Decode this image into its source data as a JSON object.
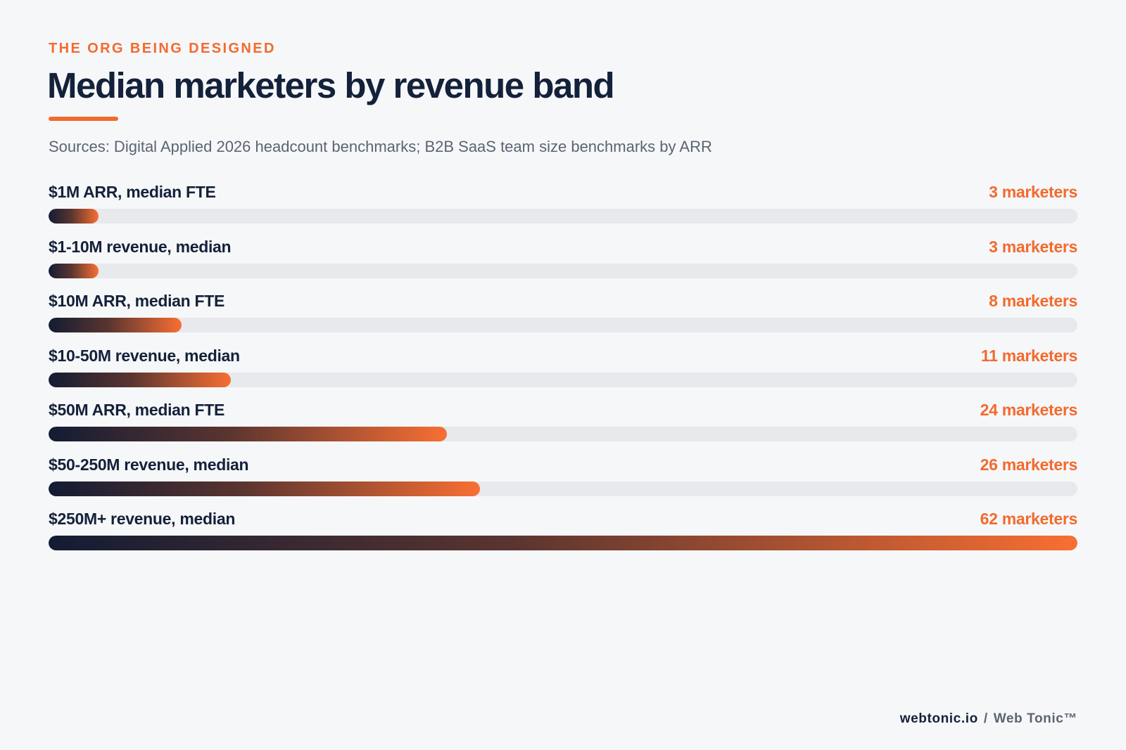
{
  "header": {
    "eyebrow": "THE ORG BEING DESIGNED",
    "title": "Median marketers by revenue band",
    "subtitle": "Sources: Digital Applied 2026 headcount benchmarks; B2B SaaS team size benchmarks by ARR"
  },
  "colors": {
    "accent": "#f26a2e",
    "navy": "#14213a",
    "track": "#e7e9ed",
    "background": "#f6f7f9"
  },
  "chart_data": {
    "type": "bar",
    "orientation": "horizontal",
    "xlim": [
      0,
      62
    ],
    "categories": [
      "$1M ARR, median FTE",
      "$1-10M revenue, median",
      "$10M ARR, median FTE",
      "$10-50M revenue, median",
      "$50M ARR, median FTE",
      "$50-250M revenue, median",
      "$250M+ revenue, median"
    ],
    "values": [
      3,
      3,
      8,
      11,
      24,
      26,
      62
    ],
    "value_labels": [
      "3 marketers",
      "3 marketers",
      "8 marketers",
      "11 marketers",
      "24 marketers",
      "26 marketers",
      "62 marketers"
    ]
  },
  "footer": {
    "domain": "webtonic.io",
    "separator": "/",
    "brand": "Web Tonic™"
  }
}
